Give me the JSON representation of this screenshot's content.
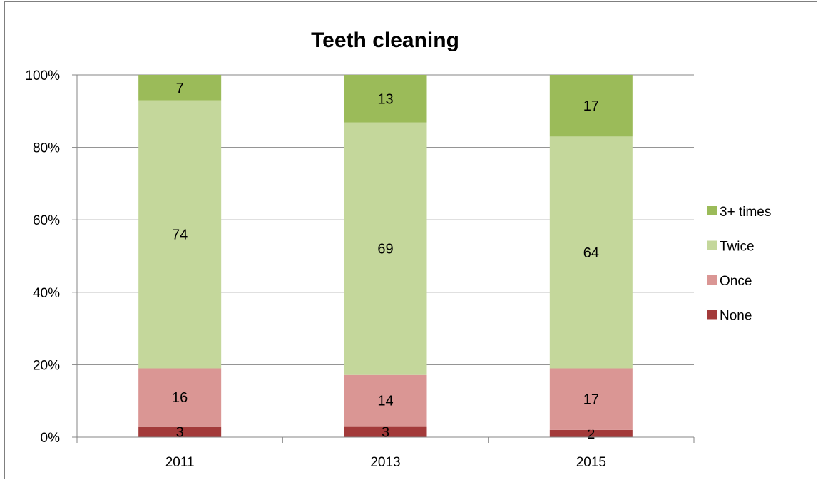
{
  "chart_data": {
    "type": "bar",
    "stacked": true,
    "percent_stacked": true,
    "title": "Teeth cleaning",
    "categories": [
      "2011",
      "2013",
      "2015"
    ],
    "series": [
      {
        "name": "None",
        "values": [
          3,
          3,
          2
        ],
        "color": "#a33a3a"
      },
      {
        "name": "Once",
        "values": [
          16,
          14,
          17
        ],
        "color": "#da9694"
      },
      {
        "name": "Twice",
        "values": [
          74,
          69,
          64
        ],
        "color": "#c4d79b"
      },
      {
        "name": "3+ times",
        "values": [
          7,
          13,
          17
        ],
        "color": "#9bbb59"
      }
    ],
    "y_ticks": [
      "0%",
      "20%",
      "40%",
      "60%",
      "80%",
      "100%"
    ],
    "ylim": [
      0,
      100
    ],
    "grid": true,
    "legend_position": "right",
    "legend_order": [
      "3+ times",
      "Twice",
      "Once",
      "None"
    ]
  }
}
